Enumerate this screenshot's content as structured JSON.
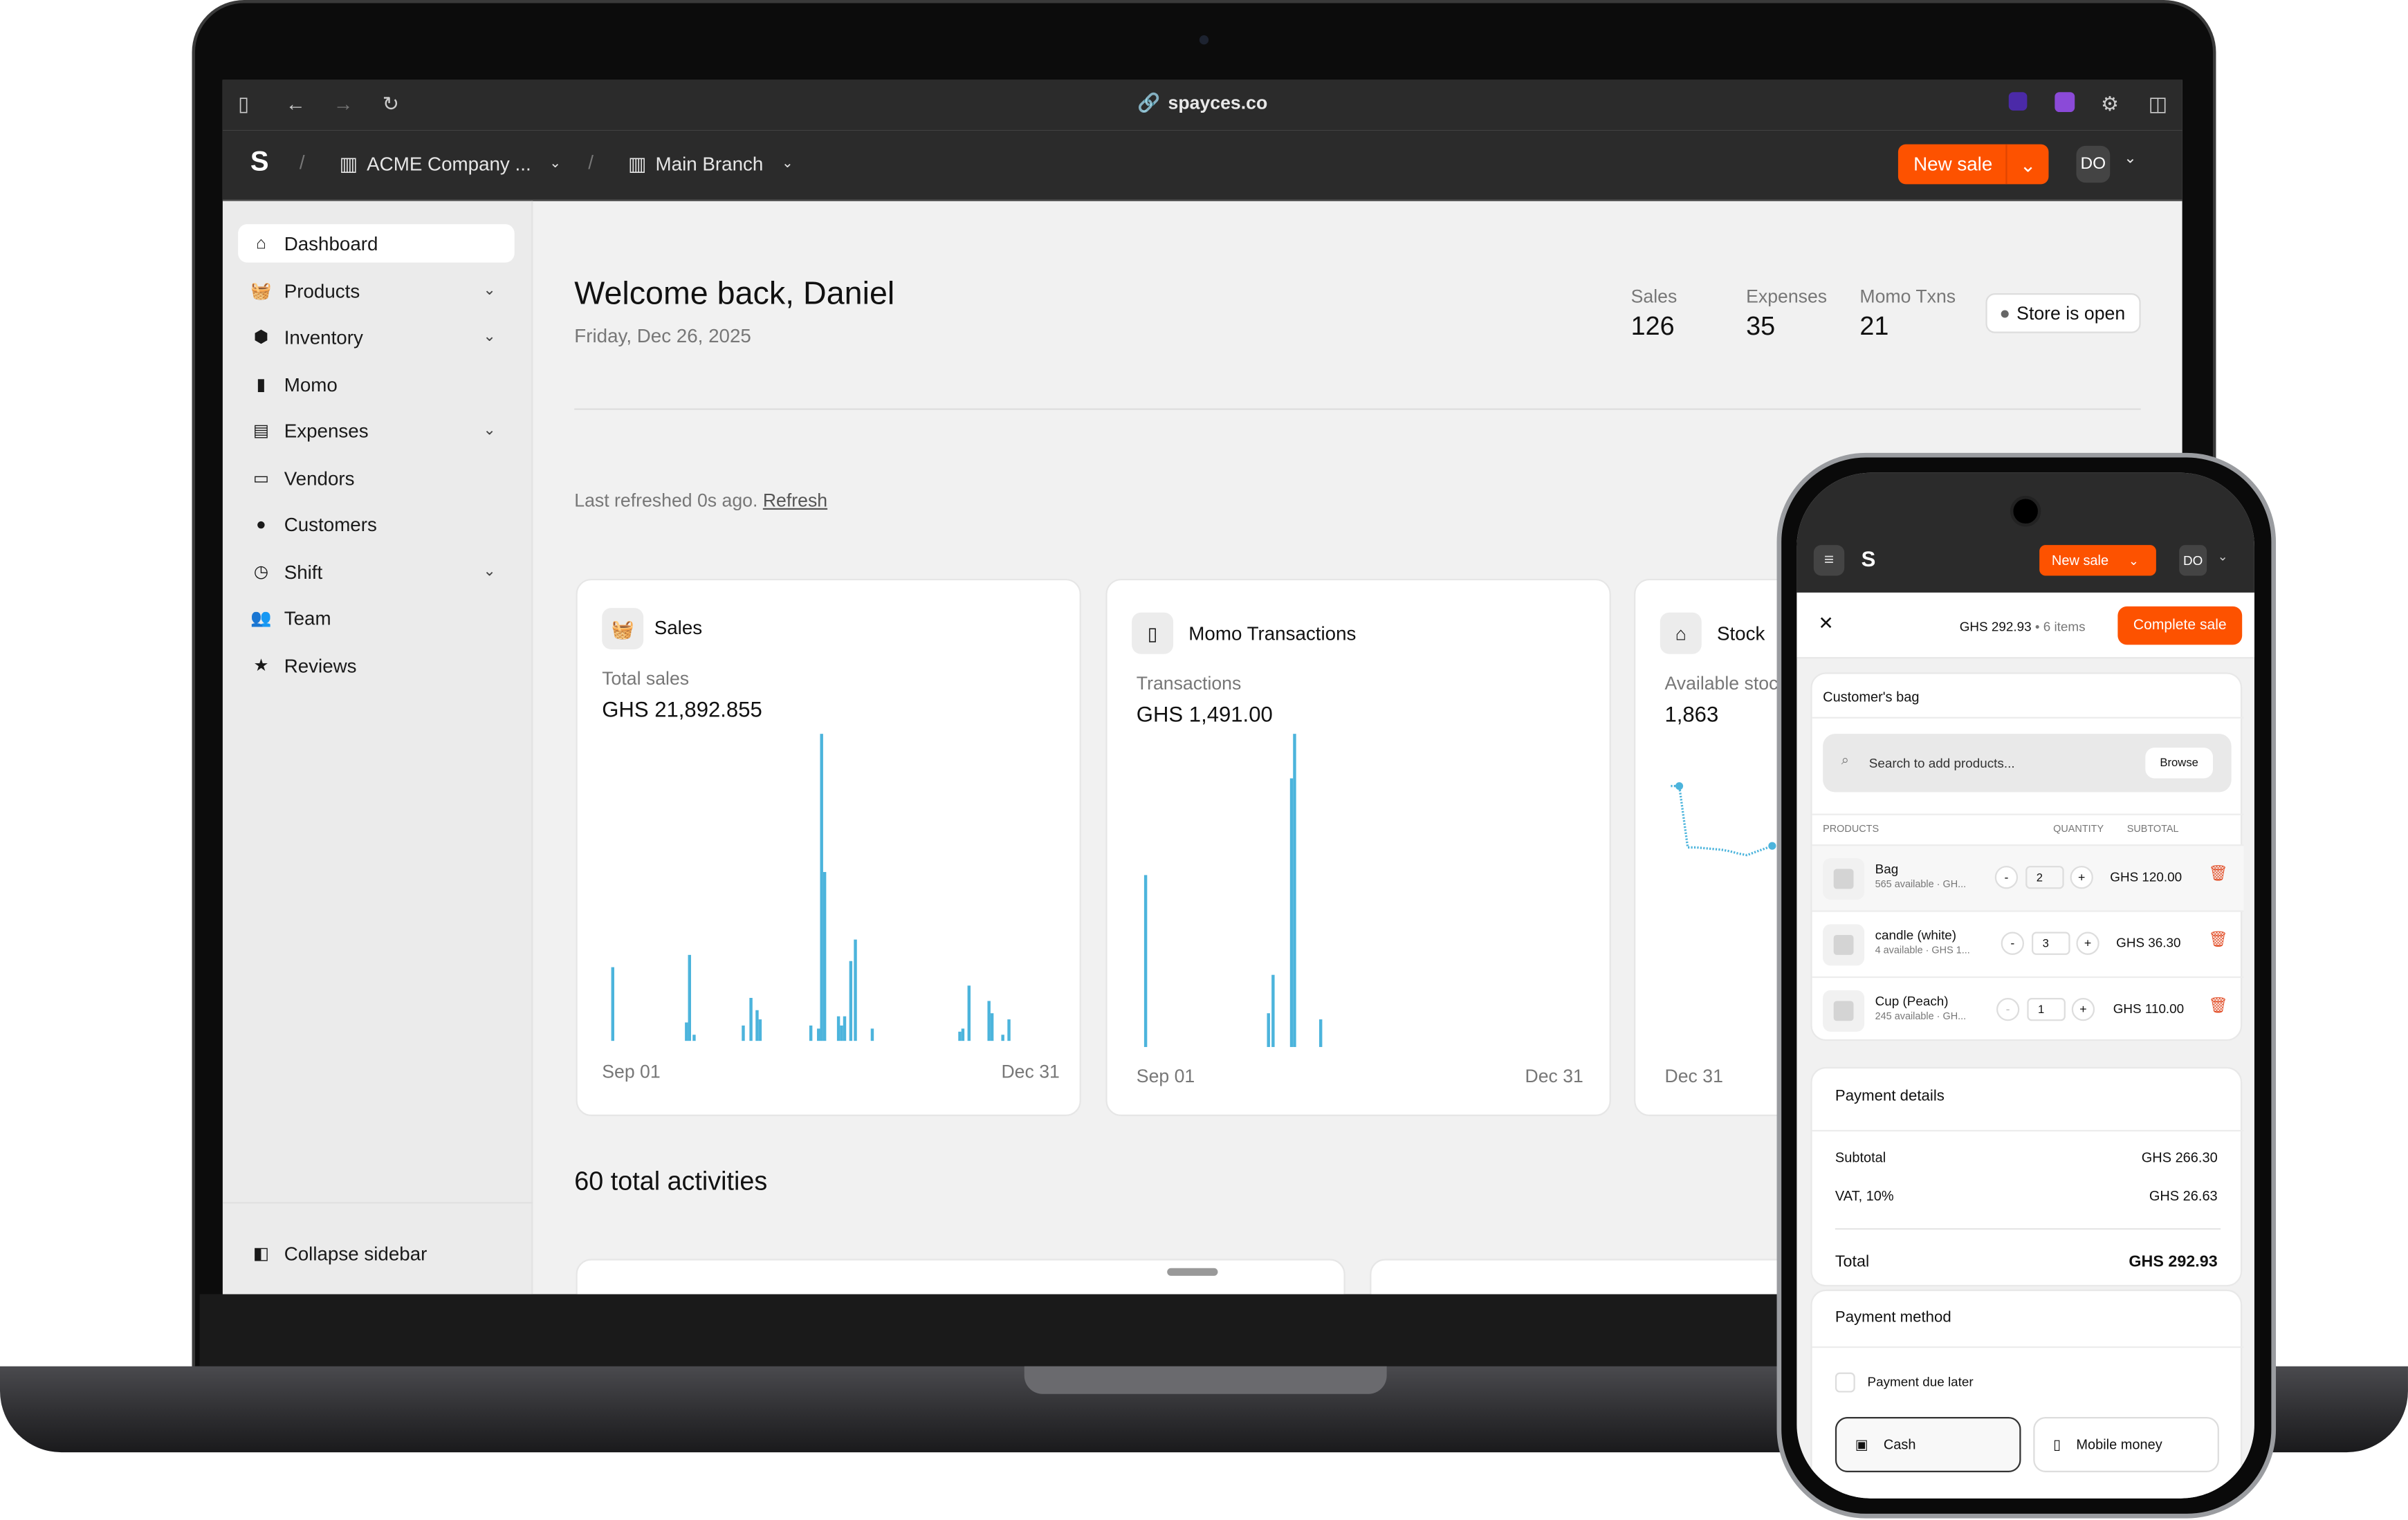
{
  "browser": {
    "url": "spayces.co",
    "icons": [
      "sidebar-toggle-icon",
      "back-arrow-icon",
      "forward-arrow-icon",
      "reload-icon",
      "link-icon",
      "extension-icon",
      "extension-icon-2",
      "settings-sliders-icon",
      "split-view-icon"
    ]
  },
  "header": {
    "company": "ACME Company ...",
    "branch": "Main Branch",
    "new_sale": "New sale",
    "avatar": "DO",
    "accent": "#fd5200"
  },
  "sidebar": {
    "items": [
      {
        "label": "Dashboard",
        "icon": "home-icon",
        "active": true
      },
      {
        "label": "Products",
        "icon": "basket-icon",
        "expandable": true
      },
      {
        "label": "Inventory",
        "icon": "box-icon",
        "expandable": true
      },
      {
        "label": "Momo",
        "icon": "phone-icon"
      },
      {
        "label": "Expenses",
        "icon": "receipt-icon",
        "expandable": true
      },
      {
        "label": "Vendors",
        "icon": "store-icon"
      },
      {
        "label": "Customers",
        "icon": "user-icon"
      },
      {
        "label": "Shift",
        "icon": "clock-icon",
        "expandable": true
      },
      {
        "label": "Team",
        "icon": "team-icon"
      },
      {
        "label": "Reviews",
        "icon": "star-icon"
      }
    ],
    "collapse": "Collapse sidebar"
  },
  "main": {
    "title": "Welcome back, Daniel",
    "date": "Friday, Dec 26, 2025",
    "stats": [
      {
        "label": "Sales",
        "value": "126"
      },
      {
        "label": "Expenses",
        "value": "35"
      },
      {
        "label": "Momo Txns",
        "value": "21"
      }
    ],
    "store_status": "Store is open",
    "refreshed": "Last refreshed 0s ago.",
    "refresh_link": "Refresh",
    "activities": "60 total activities"
  },
  "chart_data": [
    {
      "type": "bar",
      "title": "Sales",
      "metric_label": "Total sales",
      "metric_value": "GHS 21,892.855",
      "x_start": "Sep 01",
      "x_end": "Dec 31",
      "ylim": [
        0,
        1
      ],
      "x": [
        "09-01",
        "09-23",
        "09-24",
        "09-25",
        "10-10",
        "10-12",
        "10-14",
        "10-15",
        "10-30",
        "11-01",
        "11-02",
        "11-03",
        "11-07",
        "11-08",
        "11-09",
        "11-11",
        "11-12",
        "11-17",
        "12-13",
        "12-14",
        "12-16",
        "12-22",
        "12-23",
        "12-26",
        "12-28"
      ],
      "values": [
        0.24,
        0.06,
        0.28,
        0.02,
        0.05,
        0.14,
        0.1,
        0.07,
        0.05,
        0.04,
        1.0,
        0.55,
        0.08,
        0.05,
        0.08,
        0.26,
        0.33,
        0.04,
        0.03,
        0.04,
        0.18,
        0.13,
        0.09,
        0.02,
        0.07
      ]
    },
    {
      "type": "bar",
      "title": "Momo Transactions",
      "metric_label": "Transactions",
      "metric_value": "GHS 1,491.00",
      "x_start": "Sep 01",
      "x_end": "Dec 31",
      "ylim": [
        0,
        1
      ],
      "x": [
        "09-01",
        "10-09",
        "10-10",
        "10-16",
        "10-17",
        "10-25"
      ],
      "values": [
        0.55,
        0.11,
        0.23,
        0.86,
        1.0,
        0.09
      ]
    },
    {
      "type": "line",
      "title": "Stock",
      "metric_label": "Available stock",
      "metric_value": "1,863",
      "x_end": "Dec 31",
      "ylim": [
        0,
        1
      ],
      "values": [
        1.0,
        1.0,
        0.2,
        0.2,
        0.19,
        0.18,
        0.17,
        0.15,
        0.12,
        0.1,
        0.14,
        0.18,
        0.22
      ]
    }
  ],
  "phone": {
    "new_sale": "New sale",
    "avatar": "DO",
    "total": "GHS 292.93",
    "items": "6 items",
    "complete": "Complete sale",
    "bag_title": "Customer's bag",
    "search_placeholder": "Search to add products...",
    "browse": "Browse",
    "columns": [
      "PRODUCTS",
      "QUANTITY",
      "SUBTOTAL"
    ],
    "rows": [
      {
        "name": "Bag",
        "meta": "565 available · GH...",
        "qty": "2",
        "subtotal": "GHS 120.00"
      },
      {
        "name": "candle (white)",
        "meta": "4 available · GHS 1...",
        "qty": "3",
        "subtotal": "GHS 36.30"
      },
      {
        "name": "Cup (Peach)",
        "meta": "245 available · GH...",
        "qty": "1",
        "subtotal": "GHS 110.00"
      }
    ],
    "payment_details": "Payment details",
    "subtotal_label": "Subtotal",
    "subtotal": "GHS 266.30",
    "vat_label": "VAT, 10%",
    "vat": "GHS 26.63",
    "total_label": "Total",
    "total_value": "GHS 292.93",
    "payment_method": "Payment method",
    "due_later": "Payment due later",
    "cash": "Cash",
    "mobile_money": "Mobile money"
  }
}
